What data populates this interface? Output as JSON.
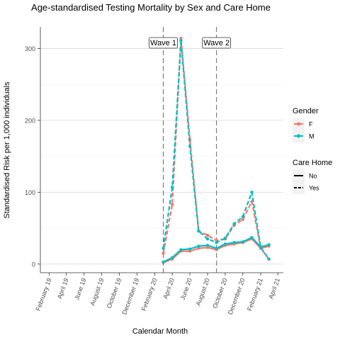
{
  "chart_data": {
    "type": "line",
    "title": "Age-standardised Testing Mortality by Sex and Care Home",
    "xlabel": "Calendar Month",
    "ylabel": "Standardised Risk per 1,000 individuals",
    "ylim": [
      -12,
      330
    ],
    "xlim": [
      "2019-01-01",
      "2021-04-20"
    ],
    "x_ticks": [
      {
        "date": "2019-02-01",
        "label": "February 19"
      },
      {
        "date": "2019-04-01",
        "label": "April 19"
      },
      {
        "date": "2019-06-01",
        "label": "June 19"
      },
      {
        "date": "2019-08-01",
        "label": "August 19"
      },
      {
        "date": "2019-10-01",
        "label": "October 19"
      },
      {
        "date": "2019-12-01",
        "label": "December 19"
      },
      {
        "date": "2020-02-01",
        "label": "February 20"
      },
      {
        "date": "2020-04-01",
        "label": "April 20"
      },
      {
        "date": "2020-06-01",
        "label": "June 20"
      },
      {
        "date": "2020-08-01",
        "label": "August 20"
      },
      {
        "date": "2020-10-01",
        "label": "October 20"
      },
      {
        "date": "2020-12-01",
        "label": "December 20"
      },
      {
        "date": "2021-02-01",
        "label": "February 21"
      },
      {
        "date": "2021-04-01",
        "label": "April 21"
      }
    ],
    "y_ticks": [
      0,
      100,
      200,
      300
    ],
    "grid": true,
    "vlines": [
      {
        "date": "2020-03-01",
        "label": "Wave 1"
      },
      {
        "date": "2020-09-01",
        "label": "Wave 2"
      }
    ],
    "legend": {
      "position": "right",
      "gender_title": "Gender",
      "gender_items": [
        {
          "label": "F",
          "color": "#F8766D"
        },
        {
          "label": "M",
          "color": "#00BFC4"
        }
      ],
      "carehome_title": "Care Home",
      "carehome_items": [
        {
          "label": "No",
          "linetype": "solid"
        },
        {
          "label": "Yes",
          "linetype": "dashed"
        }
      ]
    },
    "series": [
      {
        "gender": "F",
        "care_home": "No",
        "color": "#F8766D",
        "linetype": "solid",
        "x": [
          "2020-03-01",
          "2020-04-01",
          "2020-05-01",
          "2020-06-01",
          "2020-07-01",
          "2020-08-01",
          "2020-09-01",
          "2020-10-01",
          "2020-11-01",
          "2020-12-01",
          "2021-01-01",
          "2021-02-01",
          "2021-03-01"
        ],
        "y": [
          2,
          7,
          18,
          18,
          22,
          23,
          20,
          26,
          28,
          30,
          35,
          22,
          25
        ]
      },
      {
        "gender": "M",
        "care_home": "No",
        "color": "#00BFC4",
        "linetype": "solid",
        "x": [
          "2020-03-01",
          "2020-04-01",
          "2020-05-01",
          "2020-06-01",
          "2020-07-01",
          "2020-08-01",
          "2020-09-01",
          "2020-10-01",
          "2020-11-01",
          "2020-12-01",
          "2021-01-01",
          "2021-02-01",
          "2021-03-01"
        ],
        "y": [
          3,
          9,
          20,
          21,
          25,
          26,
          22,
          28,
          30,
          31,
          37,
          24,
          27
        ]
      },
      {
        "gender": "F",
        "care_home": "Yes",
        "color": "#F8766D",
        "linetype": "dashed",
        "x": [
          "2020-03-01",
          "2020-04-01",
          "2020-05-01",
          "2020-06-01",
          "2020-07-01",
          "2020-08-01",
          "2020-09-01",
          "2020-10-01",
          "2020-11-01",
          "2020-12-01",
          "2021-01-01",
          "2021-02-01",
          "2021-03-01"
        ],
        "y": [
          15,
          83,
          314,
          173,
          46,
          40,
          33,
          35,
          54,
          62,
          87,
          22,
          7
        ]
      },
      {
        "gender": "M",
        "care_home": "Yes",
        "color": "#00BFC4",
        "linetype": "dashed",
        "x": [
          "2020-03-01",
          "2020-04-01",
          "2020-05-01",
          "2020-06-01",
          "2020-07-01",
          "2020-08-01",
          "2020-09-01",
          "2020-10-01",
          "2020-11-01",
          "2020-12-01",
          "2021-01-01",
          "2021-02-01",
          "2021-03-01"
        ],
        "y": [
          22,
          107,
          311,
          164,
          46,
          35,
          30,
          36,
          56,
          66,
          100,
          23,
          7
        ]
      }
    ]
  }
}
